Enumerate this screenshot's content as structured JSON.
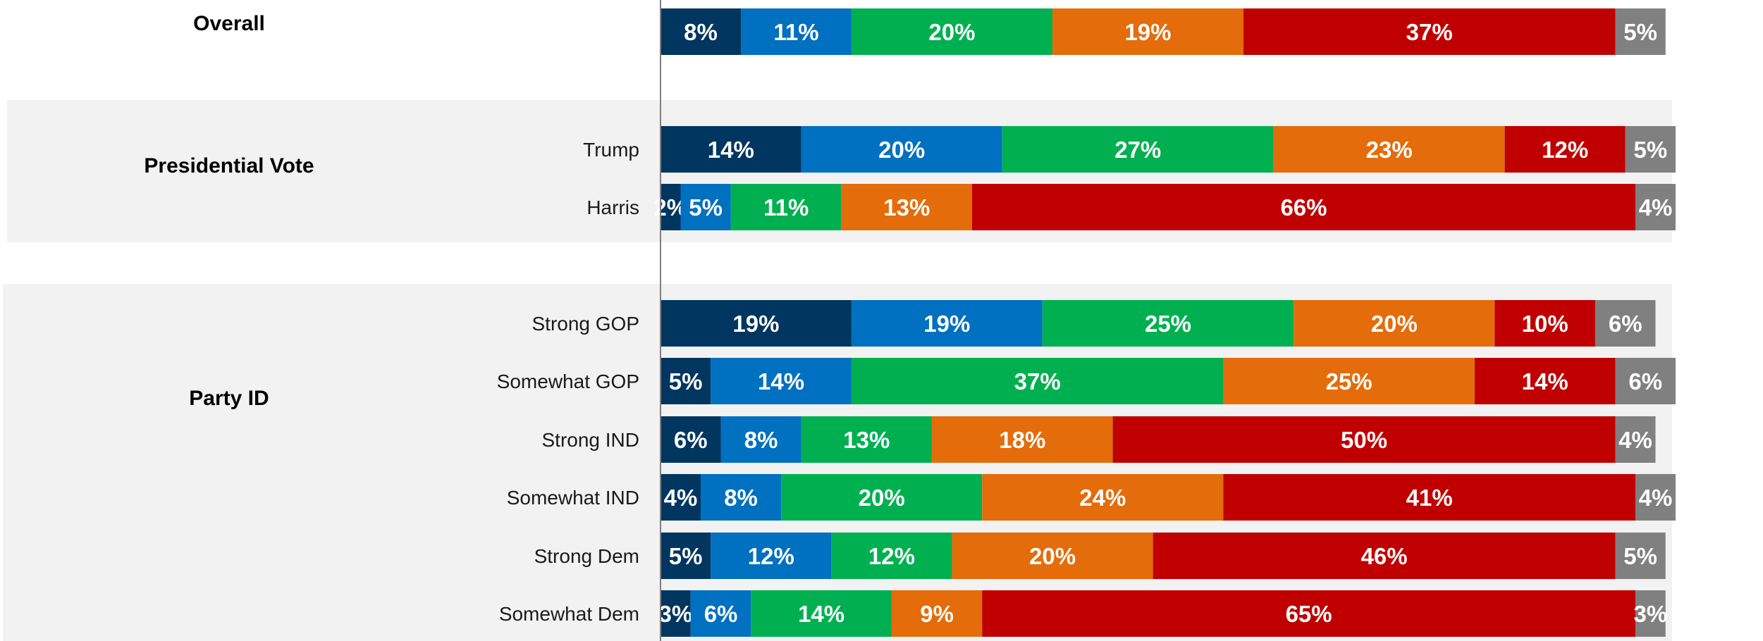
{
  "chart_data": {
    "type": "bar",
    "orientation": "horizontal",
    "stacked": true,
    "grid": false,
    "legend": "none",
    "xlim": [
      0,
      100
    ],
    "segment_colors": [
      "#003660",
      "#0070C0",
      "#00B050",
      "#E46C0A",
      "#C00000",
      "#808080"
    ],
    "band_color": "#F2F2F2",
    "groups": [
      {
        "title": "Overall",
        "shaded": false,
        "rows": [
          {
            "label": "",
            "values": [
              8,
              11,
              20,
              19,
              37,
              5
            ]
          }
        ]
      },
      {
        "title": "Presidential Vote",
        "shaded": true,
        "rows": [
          {
            "label": "Trump",
            "values": [
              14,
              20,
              27,
              23,
              12,
              5
            ]
          },
          {
            "label": "Harris",
            "values": [
              2,
              5,
              11,
              13,
              66,
              4
            ]
          }
        ]
      },
      {
        "title": "Party ID",
        "shaded": true,
        "rows": [
          {
            "label": "Strong GOP",
            "values": [
              19,
              19,
              25,
              20,
              10,
              6
            ]
          },
          {
            "label": "Somewhat GOP",
            "values": [
              5,
              14,
              37,
              25,
              14,
              6
            ]
          },
          {
            "label": "Strong IND",
            "values": [
              6,
              8,
              13,
              18,
              50,
              4
            ]
          },
          {
            "label": "Somewhat IND",
            "values": [
              4,
              8,
              20,
              24,
              41,
              4
            ]
          },
          {
            "label": "Strong Dem",
            "values": [
              5,
              12,
              12,
              20,
              46,
              5
            ]
          },
          {
            "label": "Somewhat Dem",
            "values": [
              3,
              6,
              14,
              9,
              65,
              3
            ]
          }
        ]
      }
    ]
  }
}
